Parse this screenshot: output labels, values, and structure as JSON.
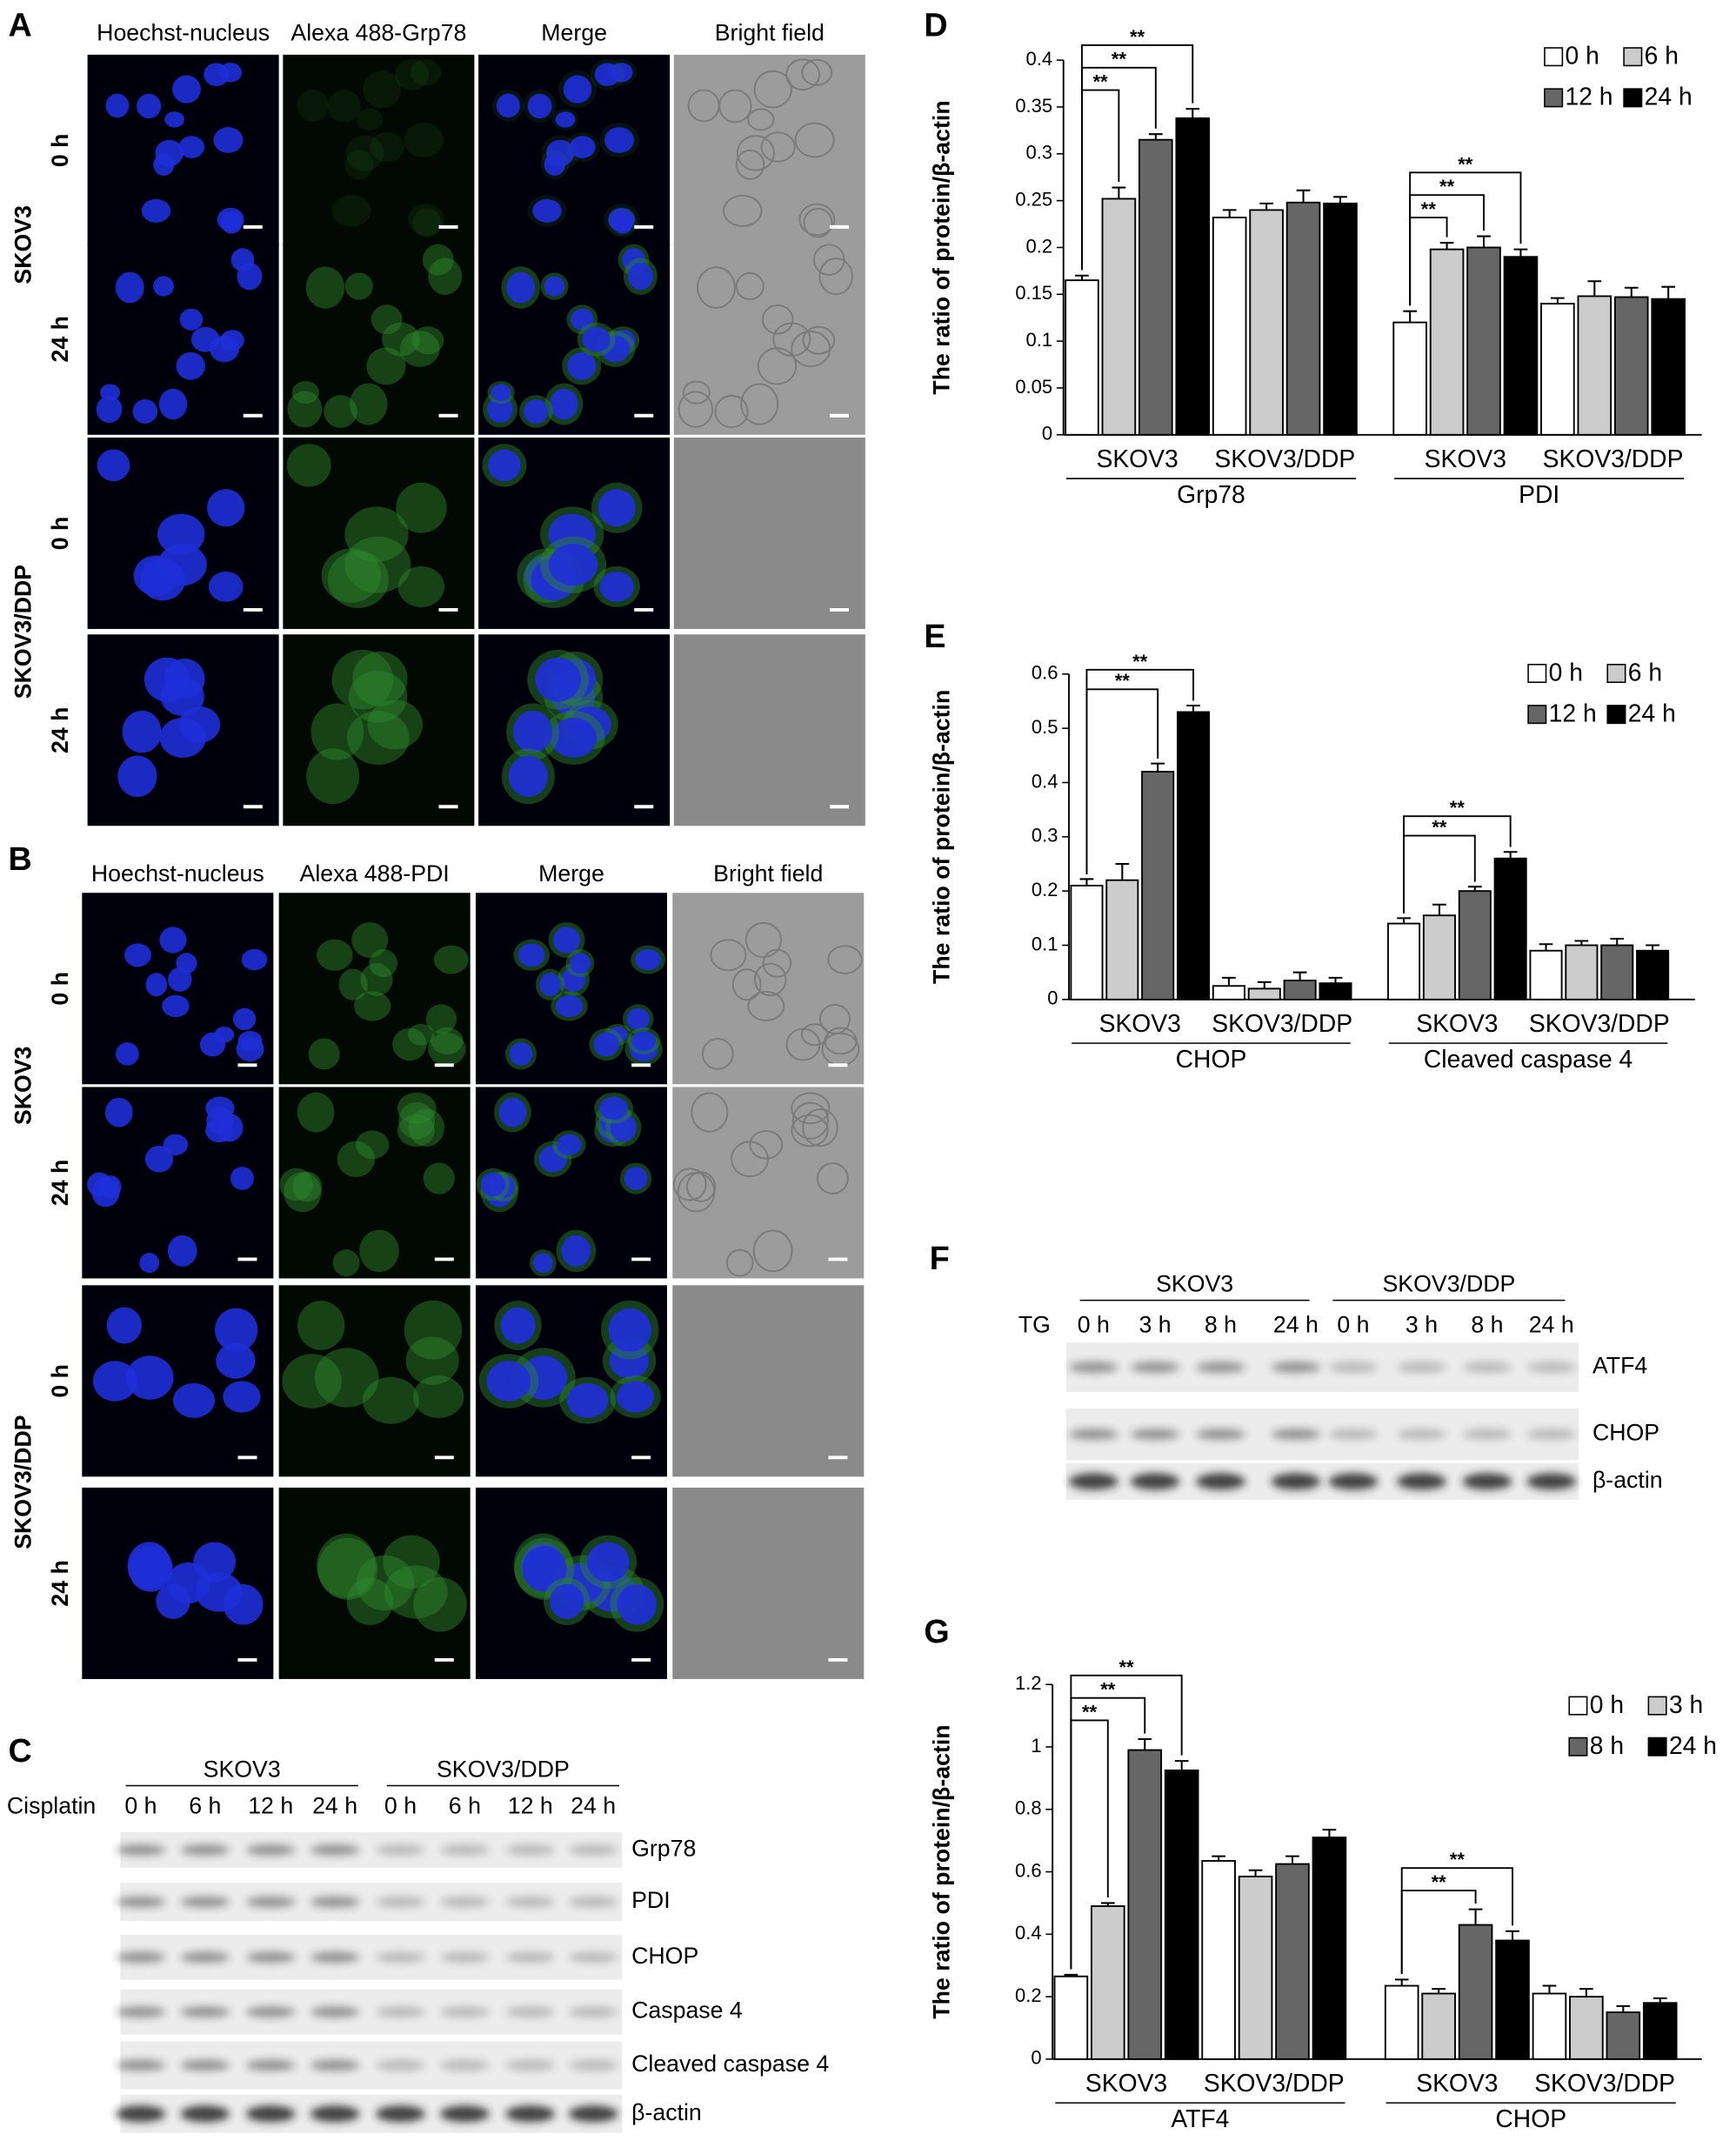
{
  "panel_a": {
    "letter": "A",
    "columns": [
      "Hoechst-nucleus",
      "Alexa 488-Grp78",
      "Merge",
      "Bright field"
    ],
    "groups": [
      "SKOV3",
      "SKOV3/DDP"
    ],
    "rows": [
      "0 h",
      "24 h",
      "0 h",
      "24 h"
    ]
  },
  "panel_b": {
    "letter": "B",
    "columns": [
      "Hoechst-nucleus",
      "Alexa 488-PDI",
      "Merge",
      "Bright field"
    ],
    "groups": [
      "SKOV3",
      "SKOV3/DDP"
    ],
    "rows": [
      "0 h",
      "24 h",
      "0 h",
      "24 h"
    ]
  },
  "panel_c": {
    "letter": "C",
    "treatment": "Cisplatin",
    "groups": [
      "SKOV3",
      "SKOV3/DDP"
    ],
    "lanes": [
      "0 h",
      "6 h",
      "12 h",
      "24 h",
      "0 h",
      "6 h",
      "12 h",
      "24 h"
    ],
    "bands": [
      "Grp78",
      "PDI",
      "CHOP",
      "Caspase 4",
      "Cleaved caspase 4",
      "β-actin"
    ]
  },
  "panel_f": {
    "letter": "F",
    "treatment": "TG",
    "groups": [
      "SKOV3",
      "SKOV3/DDP"
    ],
    "lanes": [
      "0 h",
      "3 h",
      "8 h",
      "24 h",
      "0 h",
      "3 h",
      "8 h",
      "24 h"
    ],
    "bands": [
      "ATF4",
      "CHOP",
      "β-actin"
    ]
  },
  "chart_data": [
    {
      "type": "bar",
      "panel": "D",
      "y_label": "The ratio of protein/β-actin",
      "categories": [
        "SKOV3",
        "SKOV3/DDP",
        "SKOV3",
        "SKOV3/DDP"
      ],
      "groups": [
        "Grp78",
        "PDI"
      ],
      "ylim": [
        0,
        0.4
      ],
      "yticks": [
        0,
        0.05,
        0.1,
        0.15,
        0.2,
        0.25,
        0.3,
        0.35,
        0.4
      ],
      "series": [
        {
          "name": "0 h",
          "color": "#ffffff",
          "values": [
            0.165,
            0.232,
            0.12,
            0.14
          ],
          "errors": [
            0.005,
            0.008,
            0.012,
            0.006
          ]
        },
        {
          "name": "6 h",
          "color": "#cccccc",
          "values": [
            0.252,
            0.24,
            0.198,
            0.148
          ],
          "errors": [
            0.012,
            0.007,
            0.007,
            0.016
          ]
        },
        {
          "name": "12 h",
          "color": "#666666",
          "values": [
            0.315,
            0.248,
            0.2,
            0.147
          ],
          "errors": [
            0.006,
            0.013,
            0.012,
            0.01
          ]
        },
        {
          "name": "24 h",
          "color": "#000000",
          "values": [
            0.338,
            0.247,
            0.19,
            0.145
          ],
          "errors": [
            0.01,
            0.007,
            0.008,
            0.013
          ]
        }
      ],
      "significance": [
        {
          "label": "**",
          "category": 0,
          "from": 0,
          "to": 1
        },
        {
          "label": "**",
          "category": 0,
          "from": 0,
          "to": 2
        },
        {
          "label": "**",
          "category": 0,
          "from": 0,
          "to": 3
        },
        {
          "label": "**",
          "category": 2,
          "from": 0,
          "to": 1
        },
        {
          "label": "**",
          "category": 2,
          "from": 0,
          "to": 2
        },
        {
          "label": "**",
          "category": 2,
          "from": 0,
          "to": 3
        }
      ]
    },
    {
      "type": "bar",
      "panel": "E",
      "y_label": "The ratio of protein/β-actin",
      "categories": [
        "SKOV3",
        "SKOV3/DDP",
        "SKOV3",
        "SKOV3/DDP"
      ],
      "groups": [
        "CHOP",
        "Cleaved caspase 4"
      ],
      "ylim": [
        0,
        0.6
      ],
      "yticks": [
        0,
        0.1,
        0.2,
        0.3,
        0.4,
        0.5,
        0.6
      ],
      "series": [
        {
          "name": "0 h",
          "color": "#ffffff",
          "values": [
            0.21,
            0.025,
            0.14,
            0.09
          ],
          "errors": [
            0.012,
            0.015,
            0.01,
            0.012
          ]
        },
        {
          "name": "6 h",
          "color": "#cccccc",
          "values": [
            0.22,
            0.02,
            0.155,
            0.1
          ],
          "errors": [
            0.03,
            0.012,
            0.02,
            0.008
          ]
        },
        {
          "name": "12 h",
          "color": "#666666",
          "values": [
            0.42,
            0.035,
            0.2,
            0.1
          ],
          "errors": [
            0.015,
            0.015,
            0.008,
            0.012
          ]
        },
        {
          "name": "24 h",
          "color": "#000000",
          "values": [
            0.53,
            0.03,
            0.26,
            0.09
          ],
          "errors": [
            0.012,
            0.01,
            0.012,
            0.01
          ]
        }
      ],
      "significance": [
        {
          "label": "**",
          "category": 0,
          "from": 0,
          "to": 2
        },
        {
          "label": "**",
          "category": 0,
          "from": 0,
          "to": 3
        },
        {
          "label": "**",
          "category": 2,
          "from": 0,
          "to": 2
        },
        {
          "label": "**",
          "category": 2,
          "from": 0,
          "to": 3
        }
      ]
    },
    {
      "type": "bar",
      "panel": "G",
      "y_label": "The ratio of protein/β-actin",
      "categories": [
        "SKOV3",
        "SKOV3/DDP",
        "SKOV3",
        "SKOV3/DDP"
      ],
      "groups": [
        "ATF4",
        "CHOP"
      ],
      "ylim": [
        0,
        1.2
      ],
      "yticks": [
        0,
        0.2,
        0.4,
        0.6,
        0.8,
        1,
        1.2
      ],
      "series": [
        {
          "name": "0 h",
          "color": "#ffffff",
          "values": [
            0.265,
            0.635,
            0.235,
            0.21
          ],
          "errors": [
            0.005,
            0.015,
            0.02,
            0.025
          ]
        },
        {
          "name": "3 h",
          "color": "#cccccc",
          "values": [
            0.49,
            0.585,
            0.21,
            0.2
          ],
          "errors": [
            0.01,
            0.02,
            0.015,
            0.025
          ]
        },
        {
          "name": "8 h",
          "color": "#666666",
          "values": [
            0.99,
            0.625,
            0.43,
            0.15
          ],
          "errors": [
            0.035,
            0.025,
            0.05,
            0.02
          ]
        },
        {
          "name": "24 h",
          "color": "#000000",
          "values": [
            0.925,
            0.71,
            0.38,
            0.18
          ],
          "errors": [
            0.03,
            0.025,
            0.03,
            0.015
          ]
        }
      ],
      "significance": [
        {
          "label": "**",
          "category": 0,
          "from": 0,
          "to": 1
        },
        {
          "label": "**",
          "category": 0,
          "from": 0,
          "to": 2
        },
        {
          "label": "**",
          "category": 0,
          "from": 0,
          "to": 3
        },
        {
          "label": "**",
          "category": 2,
          "from": 0,
          "to": 2
        },
        {
          "label": "**",
          "category": 2,
          "from": 0,
          "to": 3
        }
      ]
    }
  ]
}
